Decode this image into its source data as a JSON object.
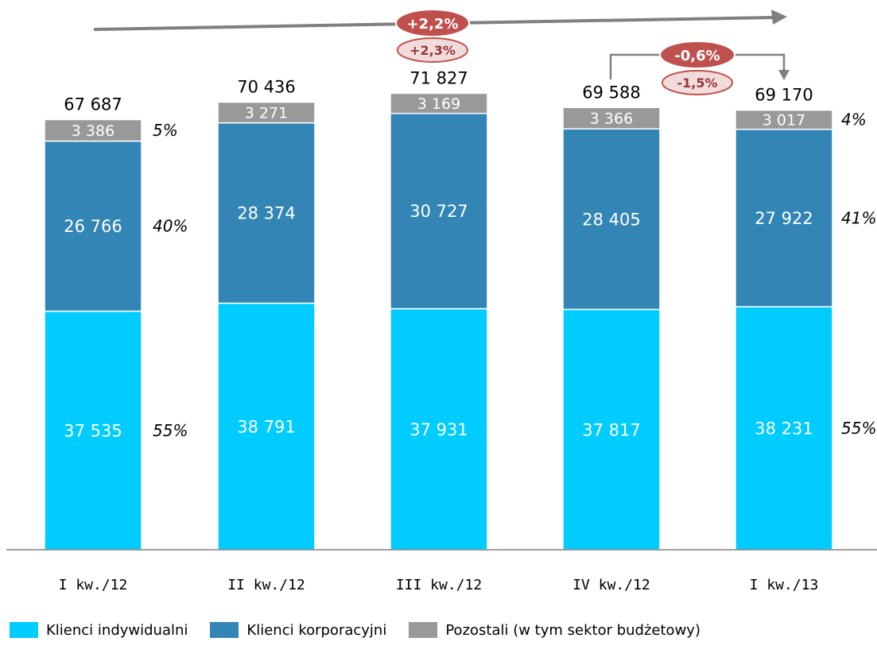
{
  "chart_data": {
    "type": "bar",
    "stacked": true,
    "categories": [
      "I kw./12",
      "II kw./12",
      "III kw./12",
      "IV kw./12",
      "I kw./13"
    ],
    "series": [
      {
        "name": "Klienci indywidualni",
        "color": "#00ccff",
        "values": [
          37535,
          38791,
          37931,
          37817,
          38231
        ],
        "value_labels": [
          "37 535",
          "38 791",
          "37 931",
          "37 817",
          "38 231"
        ]
      },
      {
        "name": "Klienci korporacyjni",
        "color": "#3385b5",
        "values": [
          26766,
          28374,
          30727,
          28405,
          27922
        ],
        "value_labels": [
          "26 766",
          "28 374",
          "30 727",
          "28 405",
          "27 922"
        ]
      },
      {
        "name": "Pozostali (w tym sektor budżetowy)",
        "color": "#999999",
        "values": [
          3386,
          3271,
          3169,
          3366,
          3017
        ],
        "value_labels": [
          "3 386",
          "3 271",
          "3 169",
          "3 366",
          "3 017"
        ]
      }
    ],
    "totals": [
      "67 687",
      "70 436",
      "71 827",
      "69 588",
      "69 170"
    ],
    "share_labels": [
      {
        "category": "I kw./12",
        "labels": [
          "55%",
          "40%",
          "5%"
        ]
      },
      {
        "category": "I kw./13",
        "labels": [
          "55%",
          "41%",
          "4%"
        ]
      }
    ],
    "annotations": {
      "overall_change": {
        "primary": "+2,2%",
        "secondary": "+2,3%"
      },
      "quarter_change": {
        "primary": "-0,6%",
        "secondary": "-1,5%"
      }
    },
    "ylim": [
      0,
      85000
    ],
    "grid": false,
    "legend_position": "bottom"
  },
  "colors": {
    "individual": "#00ccff",
    "corporate": "#3385b5",
    "other": "#999999",
    "badge_primary": "#c0504d",
    "badge_secondary": "#f2dcdb",
    "badge_secondary_text": "#953735",
    "arrow": "#808080"
  }
}
